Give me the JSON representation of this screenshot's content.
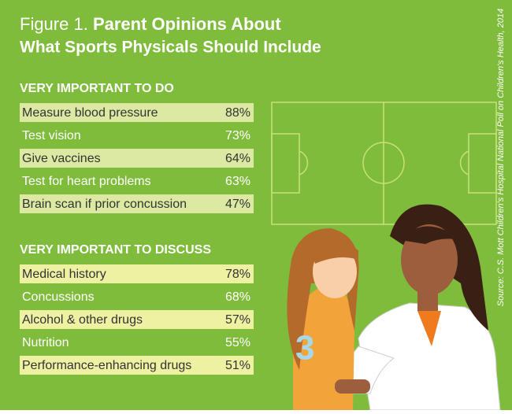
{
  "title": {
    "figure": "Figure 1.",
    "lines": [
      "Parent Opinions About",
      "What Sports Physicals Should Include"
    ]
  },
  "source": "Source: C.S. Mott Children's Hospital National Poll on Children's Health, 2014",
  "sections": [
    {
      "heading": "VERY IMPORTANT TO DO",
      "items": [
        {
          "label": "Measure blood pressure",
          "value": "88%"
        },
        {
          "label": "Test vision",
          "value": "73%"
        },
        {
          "label": "Give vaccines",
          "value": "64%"
        },
        {
          "label": "Test for heart problems",
          "value": "63%"
        },
        {
          "label": "Brain scan if prior concussion",
          "value": "47%"
        }
      ]
    },
    {
      "heading": "VERY IMPORTANT TO DISCUSS",
      "items": [
        {
          "label": "Medical history",
          "value": "78%"
        },
        {
          "label": "Concussions",
          "value": "68%"
        },
        {
          "label": "Alcohol & other drugs",
          "value": "57%"
        },
        {
          "label": "Nutrition",
          "value": "55%"
        },
        {
          "label": "Performance-enhancing drugs",
          "value": "51%"
        }
      ]
    }
  ]
}
